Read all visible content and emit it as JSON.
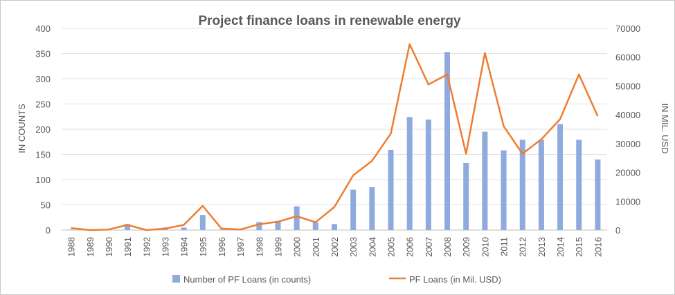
{
  "chart_data": {
    "type": "bar",
    "title": "Project finance loans in renewable energy",
    "ylabel_left": "IN COUNTS",
    "ylabel_right": "IN MIL. USD",
    "ylim_left": [
      0,
      400
    ],
    "ylim_right": [
      0,
      70000
    ],
    "yticks_left": [
      "0",
      "50",
      "100",
      "150",
      "200",
      "250",
      "300",
      "350",
      "400"
    ],
    "yticks_right": [
      "0",
      "10000",
      "20000",
      "30000",
      "40000",
      "50000",
      "60000",
      "70000"
    ],
    "grid": true,
    "legend_position": "bottom",
    "categories": [
      "1988",
      "1989",
      "1990",
      "1991",
      "1992",
      "1993",
      "1994",
      "1995",
      "1996",
      "1997",
      "1998",
      "1999",
      "2000",
      "2001",
      "2002",
      "2003",
      "2004",
      "2005",
      "2006",
      "2007",
      "2008",
      "2009",
      "2010",
      "2011",
      "2012",
      "2013",
      "2014",
      "2015",
      "2016"
    ],
    "series": [
      {
        "name": "Number of PF Loans (in counts)",
        "type": "bar",
        "axis": "left",
        "color": "#8faadc",
        "values": [
          1,
          0,
          1,
          12,
          1,
          5,
          5,
          30,
          1,
          1,
          16,
          17,
          47,
          15,
          12,
          80,
          85,
          159,
          224,
          219,
          353,
          133,
          195,
          158,
          179,
          179,
          210,
          179,
          140
        ]
      },
      {
        "name": "PF Loans (in Mil. USD)",
        "type": "line",
        "axis": "right",
        "color": "#ed7d31",
        "values": [
          700,
          0,
          200,
          1800,
          0,
          500,
          1800,
          8400,
          500,
          200,
          2000,
          2900,
          4800,
          2700,
          8000,
          19000,
          24000,
          33500,
          64500,
          50500,
          54000,
          26500,
          61500,
          36000,
          26500,
          31500,
          38500,
          54000,
          39500
        ]
      }
    ]
  }
}
